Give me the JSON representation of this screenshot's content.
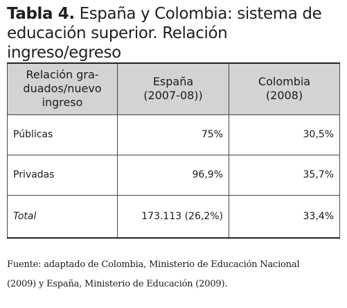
{
  "title": {
    "bold": "Tabla 4.",
    "line1": " España y Colombia: sistema de",
    "line2": "educación superior. Relación ingreso/egreso"
  },
  "table": {
    "headers": [
      "Relación gra-\nduados/nuevo\ningreso",
      "España\n(2007-08))",
      "Colombia\n(2008)"
    ],
    "rows": [
      {
        "label": "Públicas",
        "espana": "75%",
        "colombia": "30,5%"
      },
      {
        "label": "Privadas",
        "espana": "96,9%",
        "colombia": "35,7%"
      },
      {
        "label": "Total",
        "espana": "173.113 (26,2%)",
        "colombia": "33,4%"
      }
    ]
  },
  "source": {
    "line1": "Fuente: adaptado de Colombia, Ministerio de Educación Nacional",
    "line2": "(2009) y España, Ministerio de Educación (2009)."
  }
}
